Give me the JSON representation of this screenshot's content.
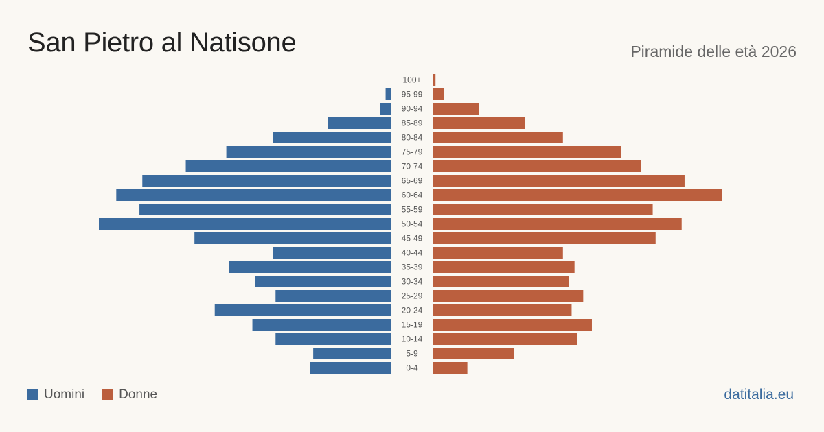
{
  "header": {
    "title": "San Pietro al Natisone",
    "subtitle": "Piramide delle età 2026"
  },
  "legend": {
    "men_label": "Uomini",
    "women_label": "Donne"
  },
  "brand": "datitalia.eu",
  "colors": {
    "men": "#3b6b9e",
    "women": "#bb5f3e",
    "brand": "#3b6b9e"
  },
  "chart_data": {
    "type": "bar",
    "orientation": "horizontal-pyramid",
    "categories": [
      "100+",
      "95-99",
      "90-94",
      "85-89",
      "80-84",
      "75-79",
      "70-74",
      "65-69",
      "60-64",
      "55-59",
      "50-54",
      "45-49",
      "40-44",
      "35-39",
      "30-34",
      "25-29",
      "20-24",
      "15-19",
      "10-14",
      "5-9",
      "0-4"
    ],
    "series": [
      {
        "name": "Uomini",
        "values": [
          0,
          2,
          4,
          22,
          41,
          57,
          71,
          86,
          95,
          87,
          101,
          68,
          41,
          56,
          47,
          40,
          61,
          48,
          40,
          27,
          28
        ]
      },
      {
        "name": "Donne",
        "values": [
          1,
          4,
          16,
          32,
          45,
          65,
          72,
          87,
          100,
          76,
          86,
          77,
          45,
          49,
          47,
          52,
          48,
          55,
          50,
          28,
          12
        ]
      }
    ]
  }
}
